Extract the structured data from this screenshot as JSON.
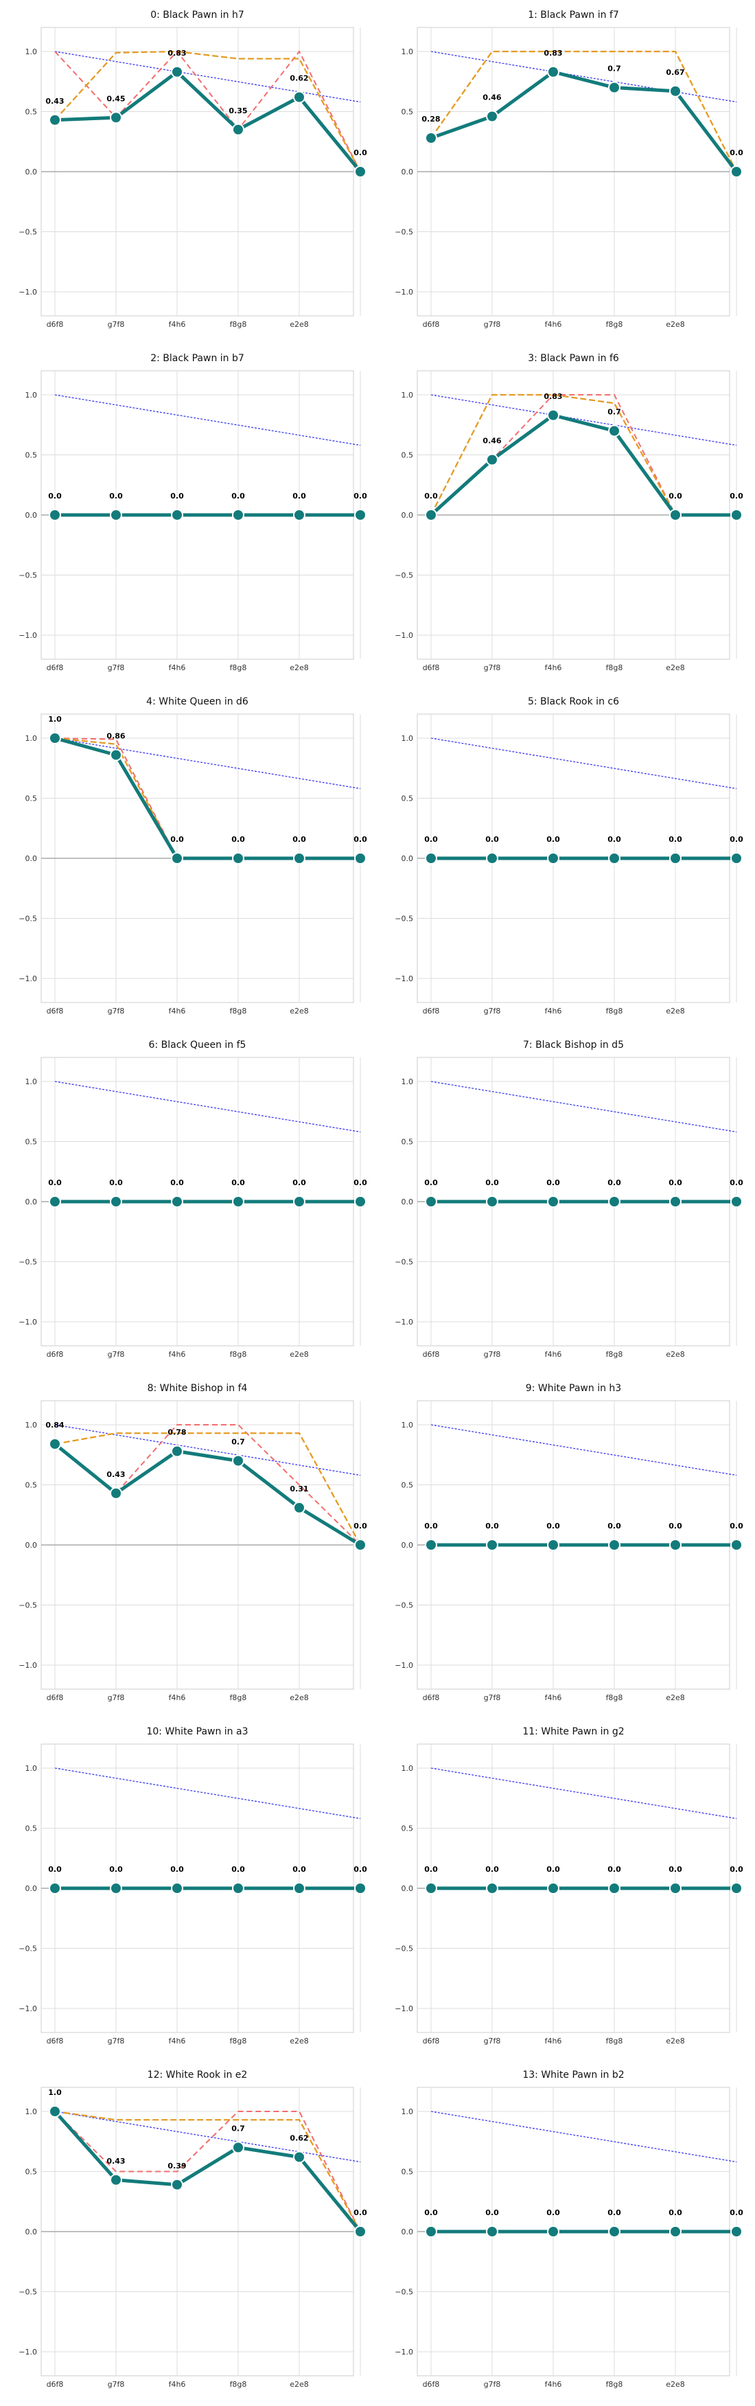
{
  "colors": {
    "main_line": "#137b7b",
    "dashed_red": "#f26d6d",
    "dashed_orange": "#e59b23",
    "trend_blue": "#3b3bf0",
    "grid": "#dcdcdc",
    "zero_line": "#aaaaaa"
  },
  "shared": {
    "x_ticks": [
      "d6f8",
      "g7f8",
      "f4h6",
      "f8g8",
      "e2e8",
      ""
    ],
    "y_ticks": [
      "−1.0",
      "−0.5",
      "0.0",
      "0.5",
      "1.0"
    ],
    "y_tick_values": [
      -1.0,
      -0.5,
      0.0,
      0.5,
      1.0
    ],
    "ylim": [
      -1.2,
      1.2
    ],
    "trend": [
      1.0,
      0.58
    ]
  },
  "chart_data": [
    {
      "type": "line",
      "title": "0: Black Pawn in h7",
      "values": [
        0.43,
        0.45,
        0.83,
        0.35,
        0.62,
        0.0
      ],
      "dash_red": [
        1.0,
        0.45,
        1.0,
        0.35,
        1.0,
        0.0
      ],
      "dash_orange": [
        0.43,
        0.99,
        1.0,
        0.94,
        0.94,
        0.0
      ]
    },
    {
      "type": "line",
      "title": "1: Black Pawn in f7",
      "values": [
        0.28,
        0.46,
        0.83,
        0.7,
        0.67,
        0.0
      ],
      "dash_red": [
        0.28,
        0.46,
        0.83,
        0.7,
        0.67,
        0.0
      ],
      "dash_orange": [
        0.28,
        1.0,
        1.0,
        1.0,
        1.0,
        0.0
      ]
    },
    {
      "type": "line",
      "title": "2: Black Pawn in b7",
      "values": [
        0.0,
        0.0,
        0.0,
        0.0,
        0.0,
        0.0
      ],
      "dash_red": null,
      "dash_orange": null
    },
    {
      "type": "line",
      "title": "3: Black Pawn in f6",
      "values": [
        0.0,
        0.46,
        0.83,
        0.7,
        0.0,
        0.0
      ],
      "dash_red": [
        0.0,
        0.46,
        1.0,
        1.0,
        0.0,
        0.0
      ],
      "dash_orange": [
        0.0,
        1.0,
        1.0,
        0.93,
        0.0,
        0.0
      ]
    },
    {
      "type": "line",
      "title": "4: White Queen in d6",
      "values": [
        1.0,
        0.86,
        0.0,
        0.0,
        0.0,
        0.0
      ],
      "dash_red": [
        1.0,
        0.99,
        0.0,
        0.0,
        0.0,
        0.0
      ],
      "dash_orange": [
        1.0,
        0.95,
        0.0,
        0.0,
        0.0,
        0.0
      ]
    },
    {
      "type": "line",
      "title": "5: Black Rook in c6",
      "values": [
        0.0,
        0.0,
        0.0,
        0.0,
        0.0,
        0.0
      ],
      "dash_red": null,
      "dash_orange": null
    },
    {
      "type": "line",
      "title": "6: Black Queen in f5",
      "values": [
        0.0,
        0.0,
        0.0,
        0.0,
        0.0,
        0.0
      ],
      "dash_red": null,
      "dash_orange": null
    },
    {
      "type": "line",
      "title": "7: Black Bishop in d5",
      "values": [
        0.0,
        0.0,
        0.0,
        0.0,
        0.0,
        0.0
      ],
      "dash_red": null,
      "dash_orange": null
    },
    {
      "type": "line",
      "title": "8: White Bishop in f4",
      "values": [
        0.84,
        0.43,
        0.78,
        0.7,
        0.31,
        0.0
      ],
      "dash_red": [
        0.84,
        0.43,
        1.0,
        1.0,
        0.5,
        0.0
      ],
      "dash_orange": [
        0.84,
        0.93,
        0.93,
        0.93,
        0.93,
        0.0
      ]
    },
    {
      "type": "line",
      "title": "9: White Pawn in h3",
      "values": [
        0.0,
        0.0,
        0.0,
        0.0,
        0.0,
        0.0
      ],
      "dash_red": null,
      "dash_orange": null
    },
    {
      "type": "line",
      "title": "10: White Pawn in a3",
      "values": [
        0.0,
        0.0,
        0.0,
        0.0,
        0.0,
        0.0
      ],
      "dash_red": null,
      "dash_orange": null
    },
    {
      "type": "line",
      "title": "11: White Pawn in g2",
      "values": [
        0.0,
        0.0,
        0.0,
        0.0,
        0.0,
        0.0
      ],
      "dash_red": null,
      "dash_orange": null
    },
    {
      "type": "line",
      "title": "12: White Rook in e2",
      "values": [
        1.0,
        0.43,
        0.39,
        0.7,
        0.62,
        0.0
      ],
      "dash_red": [
        1.0,
        0.5,
        0.5,
        1.0,
        1.0,
        0.0
      ],
      "dash_orange": [
        1.0,
        0.93,
        0.93,
        0.93,
        0.93,
        0.0
      ]
    },
    {
      "type": "line",
      "title": "13: White Pawn in b2",
      "values": [
        0.0,
        0.0,
        0.0,
        0.0,
        0.0,
        0.0
      ],
      "dash_red": null,
      "dash_orange": null
    }
  ]
}
